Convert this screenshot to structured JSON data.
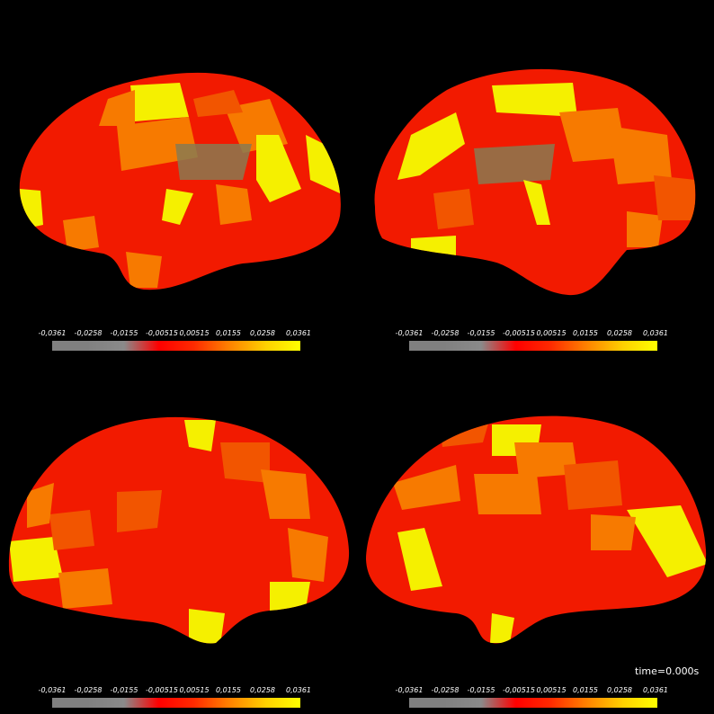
{
  "colorbar": {
    "ticks": [
      "-0,0361",
      "-0,0258",
      "-0,0155",
      "-0,00515",
      "0,00515",
      "0,0155",
      "0,0258",
      "0,0361"
    ],
    "colors": [
      "#808080",
      "#808080",
      "#8a8a8a",
      "#ff0000",
      "#ff2a00",
      "#ff7f00",
      "#ffd000",
      "#ffff00"
    ]
  },
  "views": [
    {
      "name": "lateral-left"
    },
    {
      "name": "lateral-right"
    },
    {
      "name": "medial-left"
    },
    {
      "name": "medial-right"
    }
  ],
  "time": {
    "label": "time=0.000s"
  },
  "palette": {
    "red": "#f21a00",
    "orange": "#f77a00",
    "yellow": "#f5f000",
    "gray": "#8a7a50"
  }
}
